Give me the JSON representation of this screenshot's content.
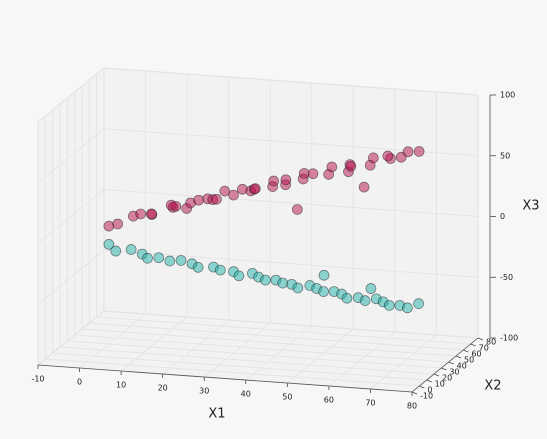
{
  "chart_data": {
    "type": "scatter3d",
    "xlabel": "X1",
    "ylabel": "X2",
    "zlabel": "X3",
    "xlim": [
      -10,
      80
    ],
    "ylim": [
      -10,
      80
    ],
    "zlim": [
      -100,
      100
    ],
    "xticks": [
      -10,
      0,
      10,
      20,
      30,
      40,
      50,
      60,
      70,
      80
    ],
    "yticks": [
      -10,
      0,
      10,
      20,
      30,
      40,
      50,
      60,
      70,
      80
    ],
    "zticks": [
      -100,
      -50,
      0,
      50,
      100
    ],
    "grid": true,
    "series": [
      {
        "color": "#b5104e",
        "x": [
          0,
          3,
          5,
          8,
          10,
          12,
          14,
          15,
          17,
          18,
          20,
          22,
          23,
          25,
          27,
          28,
          30,
          32,
          33,
          35,
          37,
          38,
          40,
          42,
          44,
          45,
          47,
          50,
          52,
          54,
          55,
          58,
          60,
          62,
          64,
          66,
          68,
          70,
          72,
          75,
          48,
          60
        ],
        "y": [
          30,
          25,
          35,
          28,
          32,
          20,
          38,
          30,
          25,
          34,
          28,
          40,
          22,
          30,
          35,
          18,
          30,
          42,
          25,
          30,
          20,
          38,
          28,
          33,
          22,
          40,
          30,
          25,
          35,
          28,
          45,
          30,
          20,
          35,
          28,
          40,
          25,
          32,
          30,
          28,
          15,
          38
        ],
        "z": [
          -3,
          2,
          4,
          10,
          8,
          15,
          12,
          18,
          20,
          14,
          22,
          20,
          28,
          25,
          30,
          32,
          30,
          28,
          38,
          36,
          42,
          35,
          45,
          40,
          50,
          42,
          52,
          55,
          50,
          60,
          48,
          62,
          66,
          60,
          70,
          64,
          74,
          70,
          76,
          78,
          30,
          40
        ]
      },
      {
        "color": "#20b2aa",
        "x": [
          0,
          2,
          5,
          8,
          10,
          12,
          15,
          17,
          20,
          22,
          25,
          27,
          30,
          32,
          34,
          36,
          38,
          40,
          42,
          44,
          46,
          48,
          50,
          52,
          54,
          56,
          58,
          60,
          62,
          64,
          66,
          68,
          70,
          72,
          50,
          62,
          74
        ],
        "y": [
          30,
          28,
          32,
          30,
          26,
          30,
          28,
          32,
          30,
          27,
          31,
          29,
          30,
          26,
          33,
          30,
          28,
          31,
          29,
          30,
          27,
          32,
          30,
          28,
          31,
          30,
          26,
          30,
          28,
          32,
          30,
          27,
          30,
          29,
          40,
          36,
          33
        ],
        "z": [
          -18,
          -22,
          -22,
          -24,
          -25,
          -26,
          -27,
          -28,
          -29,
          -30,
          -31,
          -32,
          -33,
          -34,
          -35,
          -36,
          -37,
          -38,
          -39,
          -40,
          -41,
          -41,
          -42,
          -43,
          -44,
          -45,
          -46,
          -47,
          -48,
          -48,
          -49,
          -50,
          -51,
          -52,
          -36,
          -42,
          -50
        ]
      }
    ]
  }
}
